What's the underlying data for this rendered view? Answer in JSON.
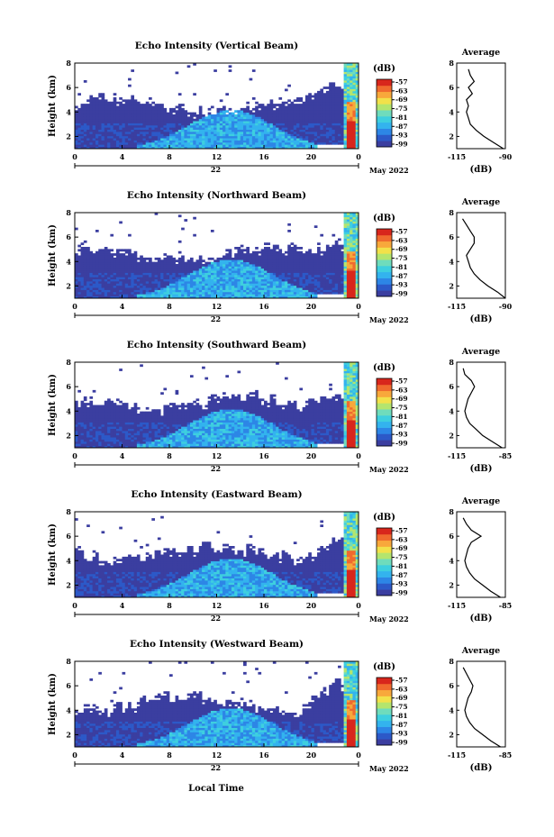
{
  "figure": {
    "xlabel": "Local Time",
    "date_label": "May 2022"
  },
  "colorbar": {
    "unit": "(dB)",
    "labels": [
      "-57",
      "-63",
      "-69",
      "-75",
      "-81",
      "-87",
      "-93",
      "-99"
    ]
  },
  "colors": {
    "scale": [
      "#3b3ea0",
      "#2c59c8",
      "#2d86e6",
      "#33b3ee",
      "#3ecfdf",
      "#6fdcbc",
      "#b4e56e",
      "#f2e14a",
      "#f8a83b",
      "#f06a2e",
      "#d8261c"
    ]
  },
  "chart_data": [
    {
      "type": "heatmap",
      "title": "Echo Intensity (Vertical Beam)",
      "ylabel": "Height (km)",
      "xlim": [
        0,
        24
      ],
      "ylim": [
        1,
        8
      ],
      "x_ticks": [
        "0",
        "4",
        "8",
        "12",
        "16",
        "20",
        "0"
      ],
      "y_ticks": [
        "8",
        "6",
        "4",
        "2"
      ],
      "day_label": "22",
      "profile": {
        "type": "line",
        "title": "Average",
        "xlabel": "(dB)",
        "x_ticks": [
          "-115",
          "-90"
        ],
        "y_ticks": [
          "8",
          "6",
          "4",
          "2"
        ],
        "xlim": [
          -115,
          -90
        ],
        "ylim": [
          1,
          8
        ],
        "height_km": [
          1.0,
          1.5,
          2.0,
          2.5,
          3.0,
          3.5,
          4.0,
          4.5,
          5.0,
          5.5,
          6.0,
          6.5,
          7.0,
          7.5
        ],
        "values_db": [
          -91,
          -96,
          -101,
          -105,
          -108,
          -109,
          -110,
          -109,
          -110,
          -107,
          -109,
          -106,
          -108,
          -109
        ]
      }
    },
    {
      "type": "heatmap",
      "title": "Echo Intensity (Northward Beam)",
      "ylabel": "Height (km)",
      "xlim": [
        0,
        24
      ],
      "ylim": [
        1,
        8
      ],
      "x_ticks": [
        "0",
        "4",
        "8",
        "12",
        "16",
        "20",
        "0"
      ],
      "y_ticks": [
        "8",
        "6",
        "4",
        "2"
      ],
      "day_label": "22",
      "profile": {
        "type": "line",
        "title": "Average",
        "xlabel": "(dB)",
        "x_ticks": [
          "-115",
          "-90"
        ],
        "y_ticks": [
          "8",
          "6",
          "4",
          "2"
        ],
        "xlim": [
          -115,
          -90
        ],
        "ylim": [
          1,
          8
        ],
        "height_km": [
          1.0,
          1.5,
          2.0,
          2.5,
          3.0,
          3.5,
          4.0,
          4.5,
          5.0,
          5.5,
          6.0,
          6.5,
          7.0,
          7.5
        ],
        "values_db": [
          -90,
          -94,
          -99,
          -103,
          -106,
          -108,
          -109,
          -110,
          -108,
          -106,
          -106,
          -108,
          -110,
          -112
        ]
      }
    },
    {
      "type": "heatmap",
      "title": "Echo Intensity (Southward Beam)",
      "ylabel": "Height (km)",
      "xlim": [
        0,
        24
      ],
      "ylim": [
        1,
        8
      ],
      "x_ticks": [
        "0",
        "4",
        "8",
        "12",
        "16",
        "20",
        "0"
      ],
      "y_ticks": [
        "8",
        "6",
        "4",
        "2"
      ],
      "day_label": "22",
      "profile": {
        "type": "line",
        "title": "Average",
        "xlabel": "(dB)",
        "x_ticks": [
          "-115",
          "-85"
        ],
        "y_ticks": [
          "8",
          "6",
          "4",
          "2"
        ],
        "xlim": [
          -115,
          -85
        ],
        "ylim": [
          1,
          8
        ],
        "height_km": [
          1.0,
          1.5,
          2.0,
          2.5,
          3.0,
          3.5,
          4.0,
          4.5,
          5.0,
          5.5,
          6.0,
          6.5,
          7.0,
          7.5
        ],
        "values_db": [
          -87,
          -93,
          -99,
          -103,
          -107,
          -109,
          -110,
          -109,
          -108,
          -106,
          -104,
          -106,
          -110,
          -111
        ]
      }
    },
    {
      "type": "heatmap",
      "title": "Echo Intensity (Eastward Beam)",
      "ylabel": "Height (km)",
      "xlim": [
        0,
        24
      ],
      "ylim": [
        1,
        8
      ],
      "x_ticks": [
        "0",
        "4",
        "8",
        "12",
        "16",
        "20",
        "0"
      ],
      "y_ticks": [
        "8",
        "6",
        "4",
        "2"
      ],
      "day_label": "22",
      "profile": {
        "type": "line",
        "title": "Average",
        "xlabel": "(dB)",
        "x_ticks": [
          "-115",
          "-85"
        ],
        "y_ticks": [
          "8",
          "6",
          "4",
          "2"
        ],
        "xlim": [
          -115,
          -85
        ],
        "ylim": [
          1,
          8
        ],
        "height_km": [
          1.0,
          1.5,
          2.0,
          2.5,
          3.0,
          3.5,
          4.0,
          4.5,
          5.0,
          5.5,
          6.0,
          6.5,
          7.0,
          7.5
        ],
        "values_db": [
          -88,
          -94,
          -99,
          -104,
          -107,
          -109,
          -110,
          -109,
          -108,
          -106,
          -100,
          -106,
          -109,
          -111
        ]
      }
    },
    {
      "type": "heatmap",
      "title": "Echo Intensity (Westward Beam)",
      "ylabel": "Height (km)",
      "xlim": [
        0,
        24
      ],
      "ylim": [
        1,
        8
      ],
      "x_ticks": [
        "0",
        "4",
        "8",
        "12",
        "16",
        "20",
        "0"
      ],
      "y_ticks": [
        "8",
        "6",
        "4",
        "2"
      ],
      "day_label": "22",
      "profile": {
        "type": "line",
        "title": "Average",
        "xlabel": "(dB)",
        "x_ticks": [
          "-115",
          "-85"
        ],
        "y_ticks": [
          "8",
          "6",
          "4",
          "2"
        ],
        "xlim": [
          -115,
          -85
        ],
        "ylim": [
          1,
          8
        ],
        "height_km": [
          1.0,
          1.5,
          2.0,
          2.5,
          3.0,
          3.5,
          4.0,
          4.5,
          5.0,
          5.5,
          6.0,
          6.5,
          7.0,
          7.5
        ],
        "values_db": [
          -88,
          -94,
          -99,
          -104,
          -107,
          -109,
          -110,
          -109,
          -108,
          -106,
          -105,
          -107,
          -109,
          -111
        ]
      }
    }
  ]
}
